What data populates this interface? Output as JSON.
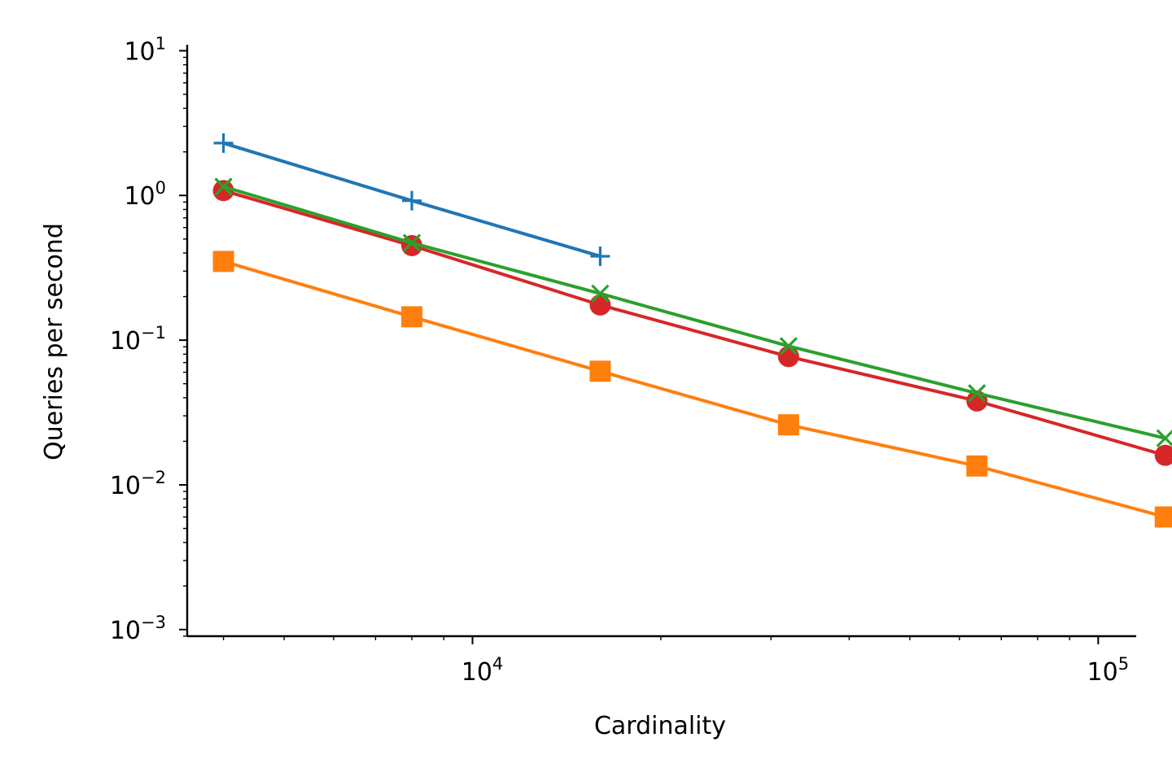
{
  "chart_data": {
    "type": "line",
    "title": "",
    "xlabel": "Cardinality",
    "ylabel": "Queries per second",
    "xscale": "log",
    "yscale": "log",
    "xlim": [
      3500,
      115000
    ],
    "ylim": [
      0.0009,
      11
    ],
    "grid": false,
    "legend": "none",
    "x_ticks": [
      {
        "value": 10000,
        "base": "10",
        "exp": "4"
      },
      {
        "value": 100000,
        "base": "10",
        "exp": "5"
      }
    ],
    "y_ticks": [
      {
        "value": 0.001,
        "base": "10",
        "exp": "−3"
      },
      {
        "value": 0.01,
        "base": "10",
        "exp": "−2"
      },
      {
        "value": 0.1,
        "base": "10",
        "exp": "−1"
      },
      {
        "value": 1,
        "base": "10",
        "exp": "0"
      },
      {
        "value": 10,
        "base": "10",
        "exp": "1"
      }
    ],
    "series": [
      {
        "color": "#1f77b4",
        "marker": "plus",
        "x": [
          4000,
          8000,
          16000
        ],
        "y": [
          2.3,
          0.92,
          0.38
        ]
      },
      {
        "color": "#d62728",
        "marker": "circle",
        "x": [
          4000,
          8000,
          16000,
          32000,
          64000,
          128000
        ],
        "y": [
          1.08,
          0.45,
          0.175,
          0.077,
          0.038,
          0.016
        ]
      },
      {
        "color": "#2ca02c",
        "marker": "x",
        "x": [
          4000,
          8000,
          16000,
          32000,
          64000,
          128000
        ],
        "y": [
          1.15,
          0.47,
          0.21,
          0.091,
          0.043,
          0.021
        ]
      },
      {
        "color": "#ff7f0e",
        "marker": "square",
        "x": [
          4000,
          8000,
          16000,
          32000,
          64000,
          128000
        ],
        "y": [
          0.35,
          0.145,
          0.061,
          0.026,
          0.0135,
          0.006
        ]
      }
    ]
  }
}
